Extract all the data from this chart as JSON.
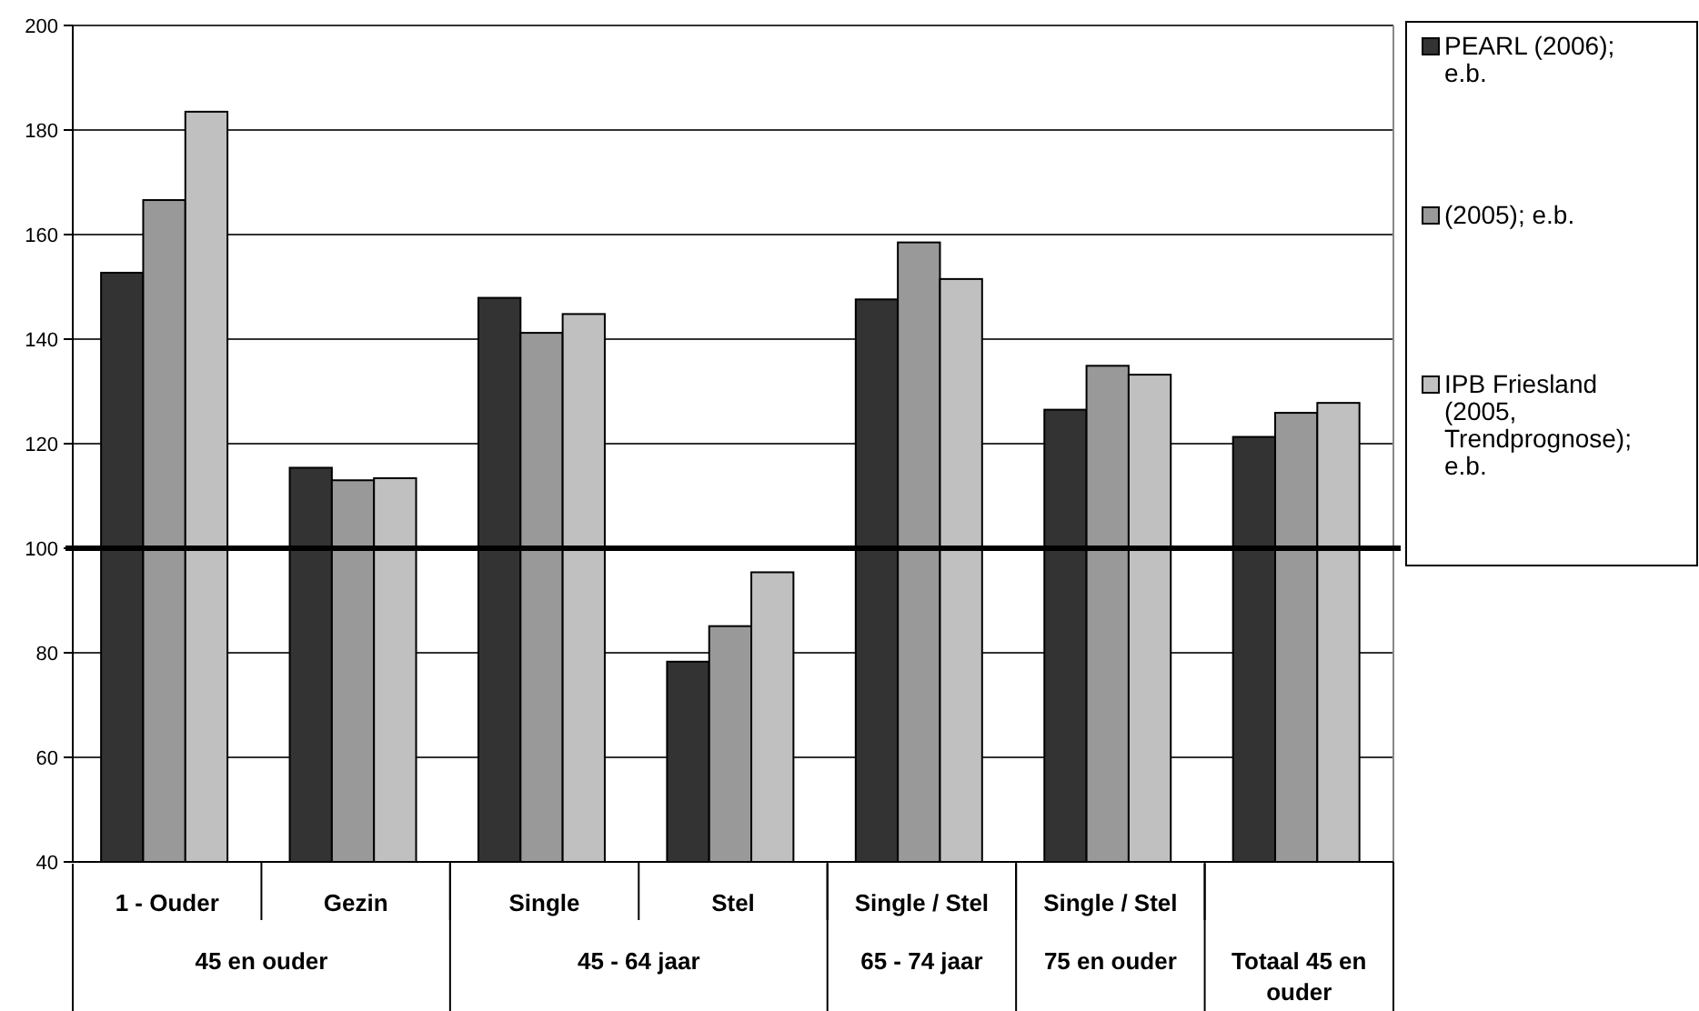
{
  "chart_data": {
    "type": "bar",
    "categories": [
      "1 - Ouder",
      "Gezin",
      "Single",
      "Stel",
      "Single / Stel",
      "Single / Stel",
      null
    ],
    "annotations": [
      "45 en ouder",
      "45 - 64 jaar",
      "65 - 74 jaar",
      "75 en ouder",
      "Totaal 45 en ouder"
    ],
    "series": [
      {
        "name": "PEARL (2006); e.b.",
        "color": "#333333",
        "values": [
          152.7,
          115.4,
          147.9,
          78.3,
          147.6,
          126.5,
          121.3
        ]
      },
      {
        "name": "(2005); e.b.",
        "color": "#999999",
        "values": [
          166.6,
          113.0,
          141.2,
          85.1,
          158.5,
          134.9,
          125.9
        ]
      },
      {
        "name": "IPB Friesland (2005, Trendprognose); e.b.",
        "color": "#c0c0c0",
        "values": [
          183.5,
          113.4,
          144.8,
          95.4,
          151.5,
          133.2,
          127.8
        ]
      }
    ],
    "ylim": [
      40,
      200
    ],
    "yticks": [
      40,
      60,
      80,
      100,
      120,
      140,
      160,
      180,
      200
    ],
    "grid": "y",
    "legend": "right",
    "ref_lines": [
      {
        "axis": "y",
        "value": 100,
        "color": "#000000"
      }
    ]
  }
}
